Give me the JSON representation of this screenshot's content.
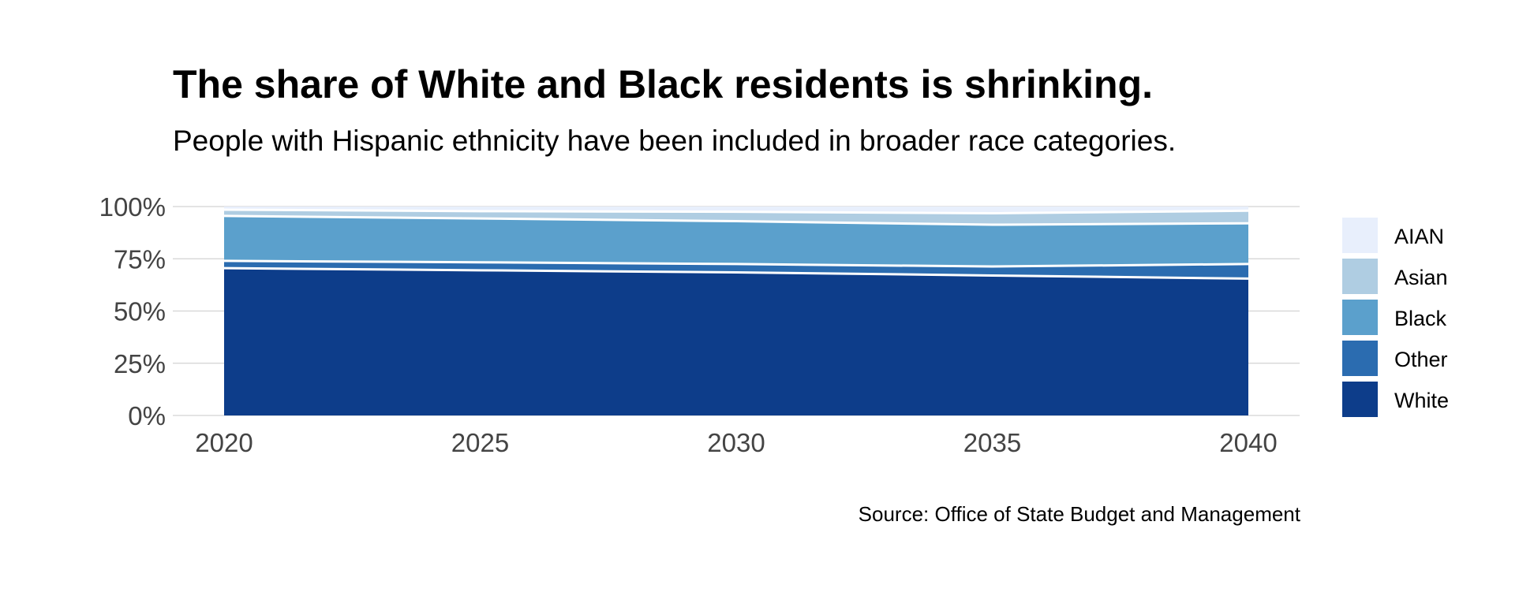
{
  "chart_data": {
    "type": "area",
    "stacked": true,
    "normalized": true,
    "title": "The share of White and Black residents is shrinking.",
    "subtitle": "People with Hispanic ethnicity have been included in broader race categories.",
    "source": "Source: Office of State Budget and Management",
    "x": [
      2020,
      2025,
      2030,
      2035,
      2040
    ],
    "x_ticks": [
      "2020",
      "2025",
      "2030",
      "2035",
      "2040"
    ],
    "y_ticks": [
      "0%",
      "25%",
      "50%",
      "75%",
      "100%"
    ],
    "ylim": [
      0,
      100
    ],
    "grid": "horizontal",
    "legend_position": "right",
    "series": [
      {
        "name": "White",
        "color": "#0d3d8a",
        "values": [
          70.5,
          69.5,
          68.5,
          67.0,
          65.5
        ]
      },
      {
        "name": "Other",
        "color": "#2b6cb0",
        "values": [
          3.5,
          3.8,
          4.0,
          4.3,
          7.0
        ]
      },
      {
        "name": "Black",
        "color": "#5ba0cc",
        "values": [
          21.5,
          21.0,
          20.5,
          20.0,
          19.5
        ]
      },
      {
        "name": "Asian",
        "color": "#afcde2",
        "values": [
          3.0,
          3.5,
          4.5,
          5.5,
          6.0
        ]
      },
      {
        "name": "AIAN",
        "color": "#e8effc",
        "values": [
          1.5,
          2.2,
          2.5,
          3.2,
          2.0
        ]
      }
    ],
    "legend_order": [
      "AIAN",
      "Asian",
      "Black",
      "Other",
      "White"
    ]
  }
}
